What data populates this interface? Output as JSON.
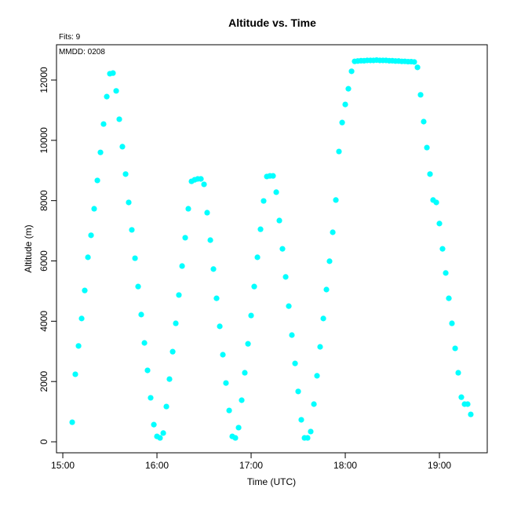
{
  "chart_data": {
    "type": "scatter",
    "title": "Altitude  vs. Time",
    "annotations": [
      "Fits: 9",
      "MMDD: 0208"
    ],
    "xlabel": "Time (UTC)",
    "ylabel": "Altitude (m)",
    "xlim": [
      14.933,
      19.508
    ],
    "ylim": [
      -364,
      13171
    ],
    "xticks": [
      {
        "value": 15,
        "label": "15:00"
      },
      {
        "value": 16,
        "label": "16:00"
      },
      {
        "value": 17,
        "label": "17:00"
      },
      {
        "value": 18,
        "label": "18:00"
      },
      {
        "value": 19,
        "label": "19:00"
      }
    ],
    "yticks": [
      0,
      2000,
      4000,
      6000,
      8000,
      10000,
      12000
    ],
    "grid": false,
    "series": [
      {
        "color": "#00ffff",
        "x": [
          15.1,
          15.133,
          15.167,
          15.2,
          15.233,
          15.267,
          15.3,
          15.333,
          15.367,
          15.4,
          15.433,
          15.467,
          15.5,
          15.533,
          15.567,
          15.6,
          15.633,
          15.667,
          15.7,
          15.733,
          15.767,
          15.8,
          15.833,
          15.867,
          15.9,
          15.933,
          15.967,
          16.0,
          16.033,
          16.067,
          16.1,
          16.133,
          16.167,
          16.2,
          16.233,
          16.267,
          16.3,
          16.333,
          16.367,
          16.4,
          16.433,
          16.467,
          16.5,
          16.533,
          16.567,
          16.6,
          16.633,
          16.667,
          16.7,
          16.733,
          16.767,
          16.8,
          16.833,
          16.867,
          16.9,
          16.933,
          16.967,
          17.0,
          17.033,
          17.067,
          17.1,
          17.133,
          17.167,
          17.2,
          17.233,
          17.267,
          17.3,
          17.333,
          17.367,
          17.4,
          17.433,
          17.467,
          17.5,
          17.533,
          17.567,
          17.6,
          17.633,
          17.667,
          17.7,
          17.733,
          17.767,
          17.8,
          17.833,
          17.867,
          17.9,
          17.933,
          17.967,
          18.0,
          18.033,
          18.067,
          18.1,
          18.133,
          18.167,
          18.2,
          18.233,
          18.267,
          18.3,
          18.333,
          18.367,
          18.4,
          18.433,
          18.467,
          18.5,
          18.533,
          18.567,
          18.6,
          18.633,
          18.667,
          18.7,
          18.733,
          18.767,
          18.8,
          18.833,
          18.867,
          18.9,
          18.933,
          18.967,
          19.0,
          19.033,
          19.067,
          19.1,
          19.133,
          19.167,
          19.2,
          19.233,
          19.267,
          19.3,
          19.333
        ],
        "values": [
          650,
          2240,
          3180,
          4090,
          5020,
          6120,
          6850,
          7730,
          8670,
          9600,
          10540,
          11450,
          12210,
          12230,
          11640,
          10700,
          9790,
          8880,
          7940,
          7030,
          6090,
          5150,
          4220,
          3280,
          2370,
          1460,
          570,
          180,
          130,
          290,
          1170,
          2080,
          2990,
          3930,
          4870,
          5830,
          6770,
          7730,
          8640,
          8690,
          8720,
          8720,
          8540,
          7600,
          6690,
          5730,
          4760,
          3830,
          2890,
          1950,
          1040,
          180,
          130,
          470,
          1380,
          2290,
          3250,
          4190,
          5150,
          6120,
          7050,
          7990,
          8800,
          8820,
          8820,
          8280,
          7340,
          6400,
          5470,
          4500,
          3540,
          2600,
          1670,
          730,
          130,
          130,
          340,
          1250,
          2190,
          3150,
          4090,
          5050,
          5990,
          6950,
          8020,
          9630,
          10590,
          11190,
          11710,
          12290,
          12620,
          12630,
          12640,
          12640,
          12650,
          12650,
          12650,
          12660,
          12650,
          12650,
          12650,
          12640,
          12640,
          12630,
          12630,
          12620,
          12620,
          12610,
          12610,
          12600,
          12420,
          11510,
          10620,
          9760,
          8880,
          8020,
          7940,
          7240,
          6400,
          5600,
          4760,
          3930,
          3100,
          2290,
          1480,
          1250,
          1250,
          910
        ]
      }
    ]
  }
}
